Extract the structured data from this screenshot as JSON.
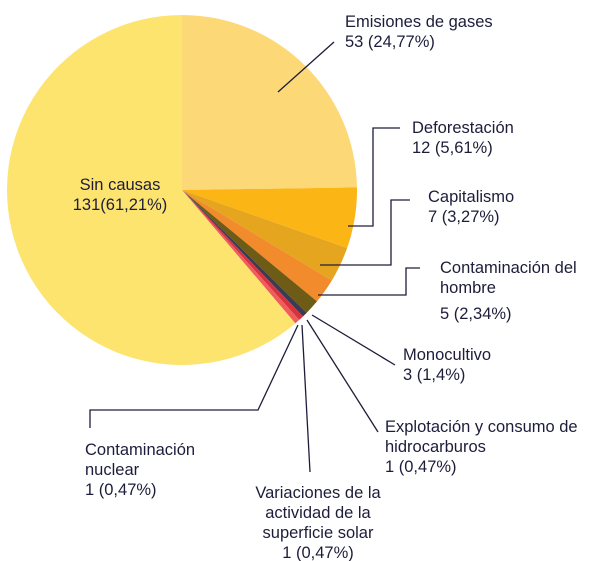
{
  "chart_data": {
    "type": "pie",
    "categories": [
      "Emisiones de gases",
      "Deforestación",
      "Capitalismo",
      "Contaminación del hombre",
      "Monocultivo",
      "Explotación y consumo de hidrocarburos",
      "Variaciones de la actividad de la superficie solar",
      "Contaminación nuclear",
      "Sin causas"
    ],
    "values": [
      53,
      12,
      7,
      5,
      3,
      1,
      1,
      1,
      131
    ],
    "value_labels": [
      "53 (24,77%)",
      "12 (5,61%)",
      "7 (3,27%)",
      "5 (2,34%)",
      "3 (1,4%)",
      "1 (0,47%)",
      "1 (0,47%)",
      "1 (0,47%)",
      "131(61,21%)"
    ],
    "colors": [
      "#fdd877",
      "#fbb616",
      "#e6a51e",
      "#f28b2c",
      "#6e5c16",
      "#3b3b55",
      "#d9323a",
      "#ef5d5d",
      "#fde46e"
    ]
  }
}
